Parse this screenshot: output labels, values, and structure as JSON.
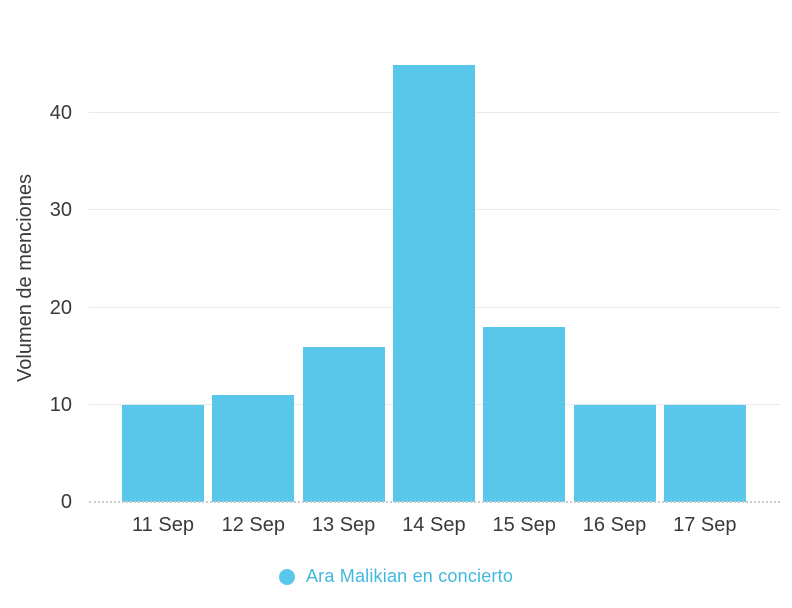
{
  "chart_data": {
    "type": "bar",
    "title": "",
    "categories": [
      "11 Sep",
      "12 Sep",
      "13 Sep",
      "14 Sep",
      "15 Sep",
      "16 Sep",
      "17 Sep"
    ],
    "series": [
      {
        "name": "Ara Malikian en concierto",
        "values": [
          10,
          11,
          16,
          45,
          18,
          10,
          10
        ]
      }
    ],
    "xlabel": "",
    "ylabel": "Volumen de menciones",
    "ylim": [
      0,
      46
    ],
    "yticks": [
      0,
      10,
      20,
      30,
      40
    ],
    "grid": true,
    "legend_position": "bottom",
    "colors": {
      "bar": "#58C7EA",
      "legend_dot": "#58C7EA",
      "legend_text": "#41B9DF",
      "axis_text": "#3a3a3a",
      "gridline": "#e9e9e9",
      "baseline_dotted": "#cccccc"
    }
  }
}
